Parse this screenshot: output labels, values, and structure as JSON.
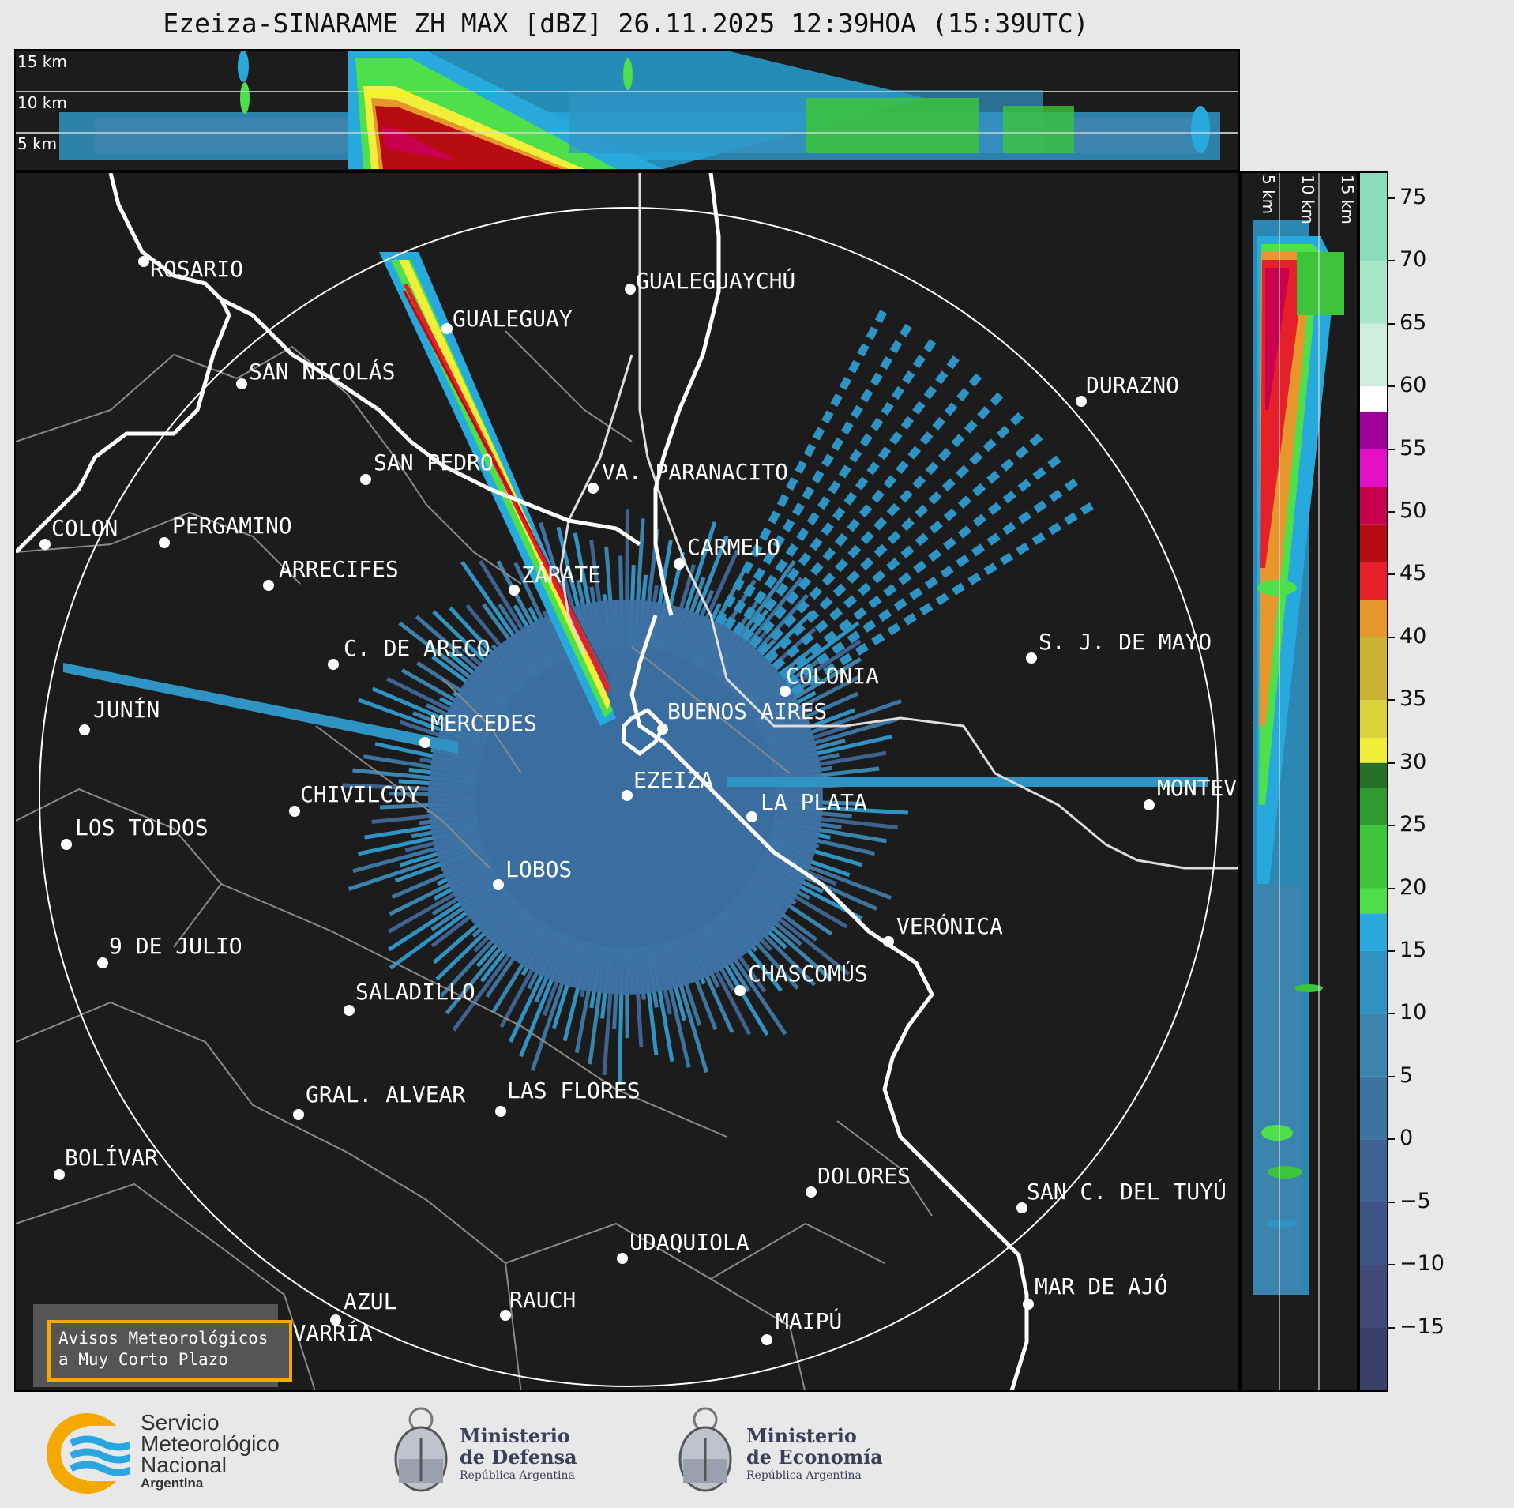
{
  "title": "Ezeiza-SINARAME ZH MAX [dBZ] 26.11.2025 12:39HOA (15:39UTC)",
  "top_panel": {
    "height_labels": [
      "15 km",
      "10 km",
      "5 km"
    ]
  },
  "side_panel": {
    "height_labels": [
      "5 km",
      "10 km",
      "15 km"
    ]
  },
  "colorbar": {
    "ticks": [
      "75",
      "70",
      "65",
      "60",
      "55",
      "50",
      "45",
      "40",
      "35",
      "30",
      "25",
      "20",
      "15",
      "10",
      "5",
      "0",
      "−5",
      "−10",
      "−15"
    ],
    "range": [
      -20,
      77
    ],
    "colors": [
      {
        "from": -20,
        "to": -15,
        "color": "#3a3f6a"
      },
      {
        "from": -15,
        "to": -10,
        "color": "#3f4a78"
      },
      {
        "from": -10,
        "to": -5,
        "color": "#3f5585"
      },
      {
        "from": -5,
        "to": 0,
        "color": "#3e6391"
      },
      {
        "from": 0,
        "to": 5,
        "color": "#3b749f"
      },
      {
        "from": 5,
        "to": 10,
        "color": "#3a84ad"
      },
      {
        "from": 10,
        "to": 15,
        "color": "#2f94c4"
      },
      {
        "from": 15,
        "to": 18,
        "color": "#27a9de"
      },
      {
        "from": 18,
        "to": 20,
        "color": "#4ee04a"
      },
      {
        "from": 20,
        "to": 25,
        "color": "#3cc43a"
      },
      {
        "from": 25,
        "to": 28,
        "color": "#2f9a2f"
      },
      {
        "from": 28,
        "to": 30,
        "color": "#276f27"
      },
      {
        "from": 30,
        "to": 32,
        "color": "#f2ef3a"
      },
      {
        "from": 32,
        "to": 35,
        "color": "#d9d23a"
      },
      {
        "from": 35,
        "to": 40,
        "color": "#c8b432"
      },
      {
        "from": 40,
        "to": 43,
        "color": "#e6962a"
      },
      {
        "from": 43,
        "to": 46,
        "color": "#e6202a"
      },
      {
        "from": 46,
        "to": 49,
        "color": "#b80d10"
      },
      {
        "from": 49,
        "to": 52,
        "color": "#c8004e"
      },
      {
        "from": 52,
        "to": 55,
        "color": "#e60fc8"
      },
      {
        "from": 55,
        "to": 58,
        "color": "#a0009a"
      },
      {
        "from": 58,
        "to": 60,
        "color": "#ffffff"
      },
      {
        "from": 60,
        "to": 65,
        "color": "#cfeee0"
      },
      {
        "from": 65,
        "to": 70,
        "color": "#a8e6c8"
      },
      {
        "from": 70,
        "to": 77,
        "color": "#8bdcbc"
      }
    ]
  },
  "cities": [
    {
      "name": "ROSARIO"
    },
    {
      "name": "GUALEGUAYCHÚ"
    },
    {
      "name": "GUALEGUAY"
    },
    {
      "name": "SAN NICOLÁS"
    },
    {
      "name": "DURAZNO"
    },
    {
      "name": "SAN PEDRO"
    },
    {
      "name": "VA. PARANACITO"
    },
    {
      "name": "COLON"
    },
    {
      "name": "PERGAMINO"
    },
    {
      "name": "CARMELO"
    },
    {
      "name": "ARRECIFES"
    },
    {
      "name": "ZÁRATE"
    },
    {
      "name": "S. J. DE MAYO"
    },
    {
      "name": "C. DE ARECO"
    },
    {
      "name": "COLONIA"
    },
    {
      "name": "JUNÍN"
    },
    {
      "name": "BUENOS AIRES"
    },
    {
      "name": "MERCEDES"
    },
    {
      "name": "EZEIZA"
    },
    {
      "name": "MONTEV"
    },
    {
      "name": "CHIVILCOY"
    },
    {
      "name": "LA PLATA"
    },
    {
      "name": "LOS TOLDOS"
    },
    {
      "name": "LOBOS"
    },
    {
      "name": "VERÓNICA"
    },
    {
      "name": "9 DE JULIO"
    },
    {
      "name": "CHASCOMÚS"
    },
    {
      "name": "SALADILLO"
    },
    {
      "name": "GRAL. ALVEAR"
    },
    {
      "name": "LAS FLORES"
    },
    {
      "name": "BOLÍVAR"
    },
    {
      "name": "DOLORES"
    },
    {
      "name": "SAN C. DEL TUYÚ"
    },
    {
      "name": "UDAQUIOLA"
    },
    {
      "name": "MAR DE AJÓ"
    },
    {
      "name": "AZUL"
    },
    {
      "name": "RAUCH"
    },
    {
      "name": "OLAVARRÍA"
    },
    {
      "name": "MAIPÚ"
    }
  ],
  "warning_box": {
    "line1": "Avisos Meteorológicos",
    "line2": "a Muy Corto Plazo"
  },
  "logos": {
    "smn": {
      "line1": "Servicio",
      "line2": "Meteorológico",
      "line3": "Nacional",
      "line4": "Argentina"
    },
    "defensa": {
      "line1": "Ministerio",
      "line2": "de Defensa",
      "line3": "República Argentina"
    },
    "economia": {
      "line1": "Ministerio",
      "line2": "de Economía",
      "line3": "República Argentina"
    }
  }
}
